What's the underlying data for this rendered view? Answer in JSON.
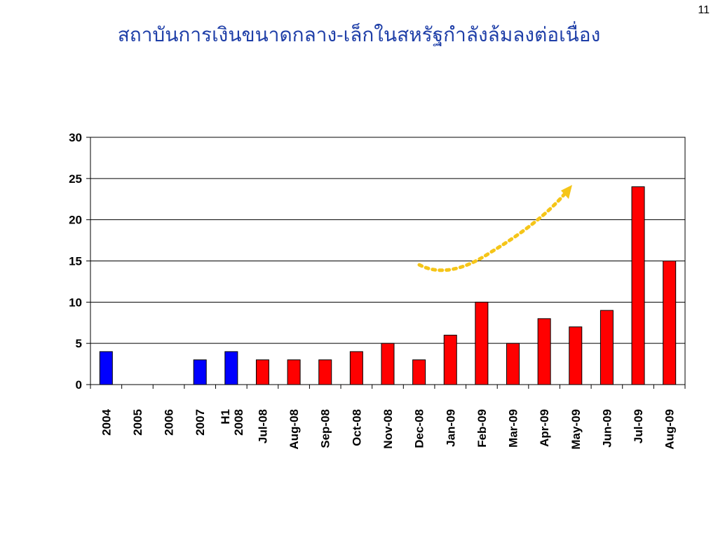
{
  "slide": {
    "number": "11",
    "title": "สถาบันการเงินขนาดกลาง-เล็กในสหรัฐกำลังล้มลงต่อเนื่อง"
  },
  "colors": {
    "annual_bar": "#0000ff",
    "monthly_bar": "#ff0000",
    "trend_arrow": "#f5c518",
    "title": "#1f3fa8"
  },
  "chart_data": {
    "type": "bar",
    "categories": [
      "2004",
      "2005",
      "2006",
      "2007",
      "H1 2008",
      "Jul-08",
      "Aug-08",
      "Sep-08",
      "Oct-08",
      "Nov-08",
      "Dec-08",
      "Jan-09",
      "Feb-09",
      "Mar-09",
      "Apr-09",
      "May-09",
      "Jun-09",
      "Jul-09",
      "Aug-09"
    ],
    "values": [
      4,
      0,
      0,
      3,
      4,
      3,
      3,
      3,
      4,
      5,
      3,
      6,
      10,
      5,
      8,
      7,
      9,
      24,
      15
    ],
    "bar_colors": [
      "blue",
      "blue",
      "blue",
      "blue",
      "blue",
      "red",
      "red",
      "red",
      "red",
      "red",
      "red",
      "red",
      "red",
      "red",
      "red",
      "red",
      "red",
      "red",
      "red"
    ],
    "ylim": [
      0,
      30
    ],
    "yticks": [
      0,
      5,
      10,
      15,
      20,
      25,
      30
    ],
    "grid": true,
    "legend": "none",
    "annotation": "dotted-curved-arrow-upward-trend"
  }
}
